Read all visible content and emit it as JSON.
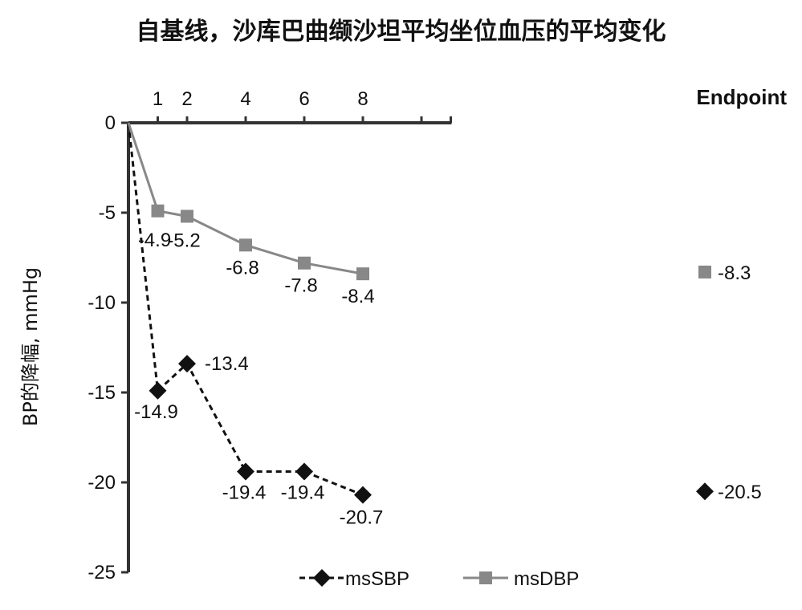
{
  "chart_data": {
    "type": "line",
    "title": "自基线，沙库巴曲缬沙坦平均坐位血压的平均变化",
    "ylabel": "BP的降幅, mmHg",
    "endpoint_label": "Endpoint",
    "x_ticks": [
      "1",
      "2",
      "4",
      "6",
      "8"
    ],
    "y_ticks": [
      "0",
      "-5",
      "-10",
      "-15",
      "-20",
      "-25"
    ],
    "ylim": [
      -25,
      0
    ],
    "xlim": [
      0,
      11
    ],
    "x": [
      1,
      2,
      4,
      6,
      8
    ],
    "series": [
      {
        "name": "msSBP",
        "color": "#111111",
        "marker": "diamond",
        "line_style": "dashed",
        "values": [
          -14.9,
          -13.4,
          -19.4,
          -19.4,
          -20.7
        ],
        "labels": [
          "-14.9",
          "-13.4",
          "-19.4",
          "-19.4",
          "-20.7"
        ],
        "endpoint_value": -20.5,
        "endpoint_label": "-20.5"
      },
      {
        "name": "msDBP",
        "color": "#888888",
        "marker": "square",
        "line_style": "solid",
        "values": [
          -4.9,
          -5.2,
          -6.8,
          -7.8,
          -8.4
        ],
        "labels": [
          "-4.9",
          "-5.2",
          "-6.8",
          "-7.8",
          "-8.4"
        ],
        "endpoint_value": -8.3,
        "endpoint_label": "-8.3"
      }
    ],
    "legend_position": "bottom-center",
    "grid": false
  }
}
